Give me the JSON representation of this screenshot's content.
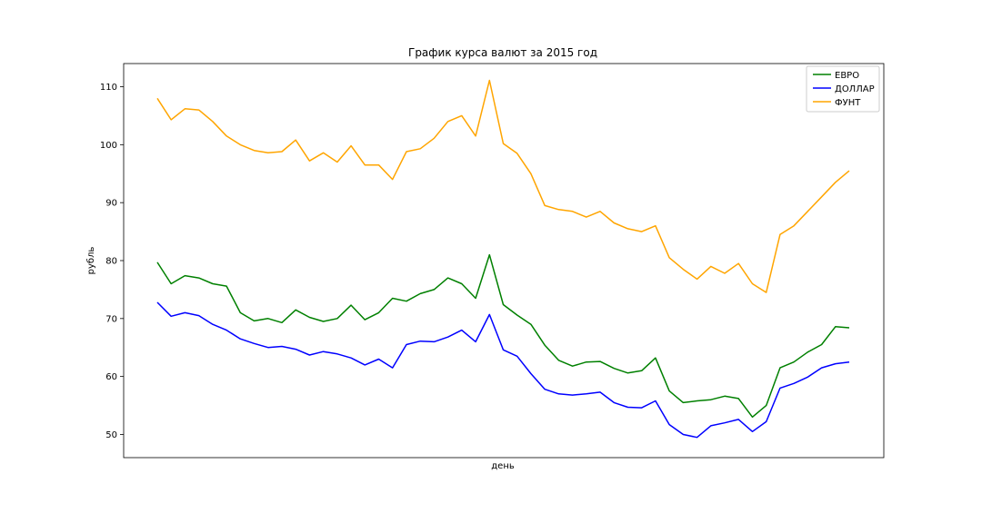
{
  "chart_data": {
    "type": "line",
    "title": "График курса валют за 2015 год",
    "xlabel": "день",
    "ylabel": "рубль",
    "ylim": [
      46,
      114
    ],
    "y_ticks": [
      50,
      60,
      70,
      80,
      90,
      100,
      110
    ],
    "x_tick_labels": false,
    "grid": false,
    "legend": {
      "placement": "top-right"
    },
    "x": [
      0,
      5,
      10,
      15,
      20,
      25,
      30,
      35,
      40,
      45,
      50,
      55,
      60,
      65,
      70,
      75,
      80,
      85,
      90,
      95,
      100,
      105,
      110,
      115,
      120,
      125,
      130,
      135,
      140,
      145,
      150,
      155,
      160,
      165,
      170,
      175,
      180,
      185,
      190,
      195,
      200,
      205,
      210,
      215,
      220,
      225,
      230,
      235,
      240,
      245,
      250
    ],
    "series": [
      {
        "name": "ЕВРО",
        "color": "#008000",
        "values": [
          79.7,
          76.0,
          77.4,
          77.0,
          76.0,
          75.6,
          71.0,
          69.6,
          70.0,
          69.3,
          71.5,
          70.2,
          69.5,
          70.0,
          72.3,
          69.8,
          71.0,
          73.5,
          73.0,
          74.3,
          75.0,
          77.0,
          76.0,
          73.5,
          81.0,
          72.4,
          70.6,
          69.0,
          65.4,
          62.8,
          61.8,
          62.5,
          62.6,
          61.4,
          60.6,
          61.0,
          63.2,
          57.5,
          55.5,
          55.8,
          56.0,
          56.6,
          56.2,
          53.0,
          55.0,
          61.5,
          62.5,
          64.2,
          65.5,
          68.6,
          68.4
        ]
      },
      {
        "name": "ДОЛЛАР",
        "color": "#0000ff",
        "values": [
          72.8,
          70.4,
          71.0,
          70.5,
          69.0,
          68.0,
          66.5,
          65.7,
          65.0,
          65.2,
          64.7,
          63.7,
          64.3,
          63.9,
          63.2,
          62.0,
          63.0,
          61.5,
          65.5,
          66.1,
          66.0,
          66.8,
          68.0,
          66.0,
          70.7,
          64.6,
          63.5,
          60.5,
          57.8,
          57.0,
          56.8,
          57.0,
          57.3,
          55.5,
          54.7,
          54.6,
          55.8,
          51.7,
          50.0,
          49.5,
          51.5,
          52.0,
          52.6,
          50.5,
          52.2,
          58.0,
          58.8,
          59.9,
          61.5,
          62.2,
          62.5
        ]
      },
      {
        "name": "ФУНТ",
        "color": "#ffa500",
        "values": [
          108.0,
          104.3,
          106.2,
          106.0,
          104.0,
          101.5,
          100.0,
          99.0,
          98.6,
          98.8,
          100.8,
          97.2,
          98.6,
          97.0,
          99.8,
          96.5,
          96.5,
          94.0,
          98.8,
          99.3,
          101.1,
          104.0,
          105.0,
          101.5,
          111.1,
          100.2,
          98.5,
          95.0,
          89.5,
          88.8,
          88.5,
          87.5,
          88.5,
          86.5,
          85.5,
          85.0,
          86.0,
          80.5,
          78.5,
          76.8,
          79.0,
          77.8,
          79.5,
          76.0,
          74.5,
          84.5,
          86.0,
          88.5,
          91.0,
          93.5,
          95.5
        ]
      }
    ]
  }
}
